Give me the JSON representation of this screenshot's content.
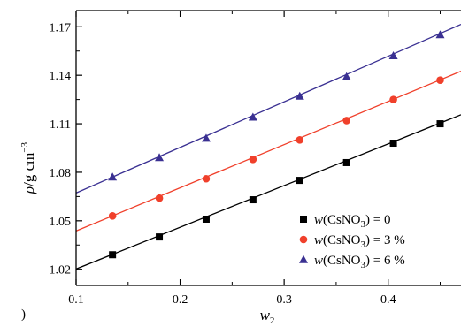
{
  "chart_data": {
    "type": "scatter",
    "ylabel": {
      "symbol": "ρ",
      "unit": "/g cm",
      "exponent": "−3"
    },
    "xlabel": {
      "symbol": "w",
      "subscript": "2"
    },
    "xlim": [
      0.1,
      0.47
    ],
    "ylim": [
      1.01,
      1.18
    ],
    "x_ticks": [
      "0.1",
      "0.2",
      "0.3",
      "0.4"
    ],
    "x_tick_values": [
      0.1,
      0.2,
      0.3,
      0.4
    ],
    "y_ticks": [
      "1.02",
      "1.05",
      "1.08",
      "1.11",
      "1.14",
      "1.17"
    ],
    "y_tick_values": [
      1.02,
      1.05,
      1.08,
      1.11,
      1.14,
      1.17
    ],
    "grid": false,
    "legend_position": "bottom-right",
    "panel_letter": ")",
    "series": [
      {
        "name": "w(CsNO3) = 0",
        "legend": {
          "italic": "w",
          "pre": "(CsNO",
          "sub": "3",
          "post": ") = 0"
        },
        "marker": "square",
        "color": "#000000",
        "x": [
          0.135,
          0.18,
          0.225,
          0.27,
          0.315,
          0.36,
          0.405,
          0.45
        ],
        "y": [
          1.029,
          1.04,
          1.051,
          1.063,
          1.075,
          1.086,
          1.098,
          1.11
        ],
        "fit": {
          "x": [
            0.1,
            0.47
          ],
          "y": [
            1.0202,
            1.1156
          ]
        }
      },
      {
        "name": "w(CsNO3) = 3 %",
        "legend": {
          "italic": "w",
          "pre": "(CsNO",
          "sub": "3",
          "post": ") = 3 %"
        },
        "marker": "circle",
        "color": "#f0402b",
        "x": [
          0.135,
          0.18,
          0.225,
          0.27,
          0.315,
          0.36,
          0.405,
          0.45
        ],
        "y": [
          1.053,
          1.064,
          1.076,
          1.088,
          1.1,
          1.112,
          1.125,
          1.137
        ],
        "fit": {
          "x": [
            0.1,
            0.47
          ],
          "y": [
            1.0437,
            1.1425
          ]
        }
      },
      {
        "name": "w(CsNO3) = 6 %",
        "legend": {
          "italic": "w",
          "pre": "(CsNO",
          "sub": "3",
          "post": ") = 6 %"
        },
        "marker": "triangle",
        "color": "#3a3092",
        "x": [
          0.135,
          0.18,
          0.225,
          0.27,
          0.315,
          0.36,
          0.405,
          0.45
        ],
        "y": [
          1.077,
          1.089,
          1.101,
          1.114,
          1.127,
          1.139,
          1.152,
          1.165
        ],
        "fit": {
          "x": [
            0.1,
            0.47
          ],
          "y": [
            1.0672,
            1.1715
          ]
        }
      }
    ]
  }
}
